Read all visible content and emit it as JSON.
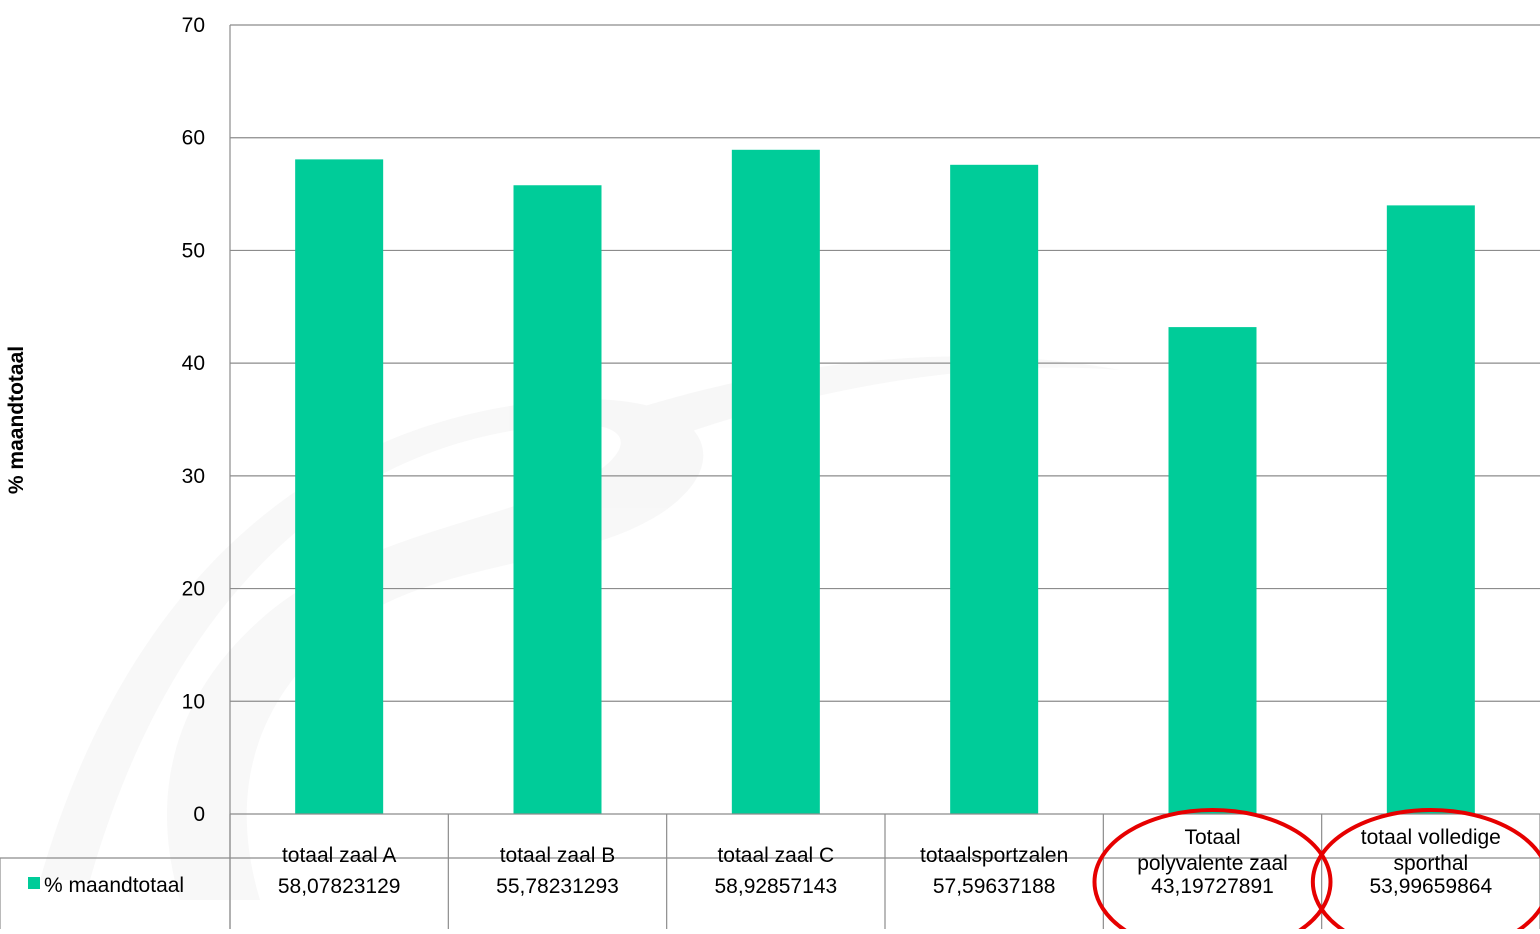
{
  "chart_data": {
    "type": "bar",
    "ylabel": "% maandtotaal",
    "ylim": [
      0,
      70
    ],
    "yticks": [
      0,
      10,
      20,
      30,
      40,
      50,
      60,
      70
    ],
    "grid": true,
    "categories": [
      [
        "totaal zaal A"
      ],
      [
        "totaal zaal B"
      ],
      [
        "totaal zaal C"
      ],
      [
        "totaalsportzalen"
      ],
      [
        "Totaal",
        "polyvalente zaal"
      ],
      [
        "totaal volledige",
        "sporthal"
      ]
    ],
    "series": [
      {
        "name": "% maandtotaal",
        "color": "#00CC99",
        "values": [
          58.07823129,
          55.78231293,
          58.92857143,
          57.59637188,
          43.19727891,
          53.99659864
        ],
        "table_labels": [
          "58,07823129",
          "55,78231293",
          "58,92857143",
          "57,59637188",
          "43,19727891",
          "53,99659864"
        ]
      }
    ],
    "data_table": true,
    "annotations": [
      {
        "type": "ellipse",
        "color": "#E60000",
        "around_category": 4
      },
      {
        "type": "ellipse",
        "color": "#E60000",
        "around_category": 5
      }
    ]
  }
}
